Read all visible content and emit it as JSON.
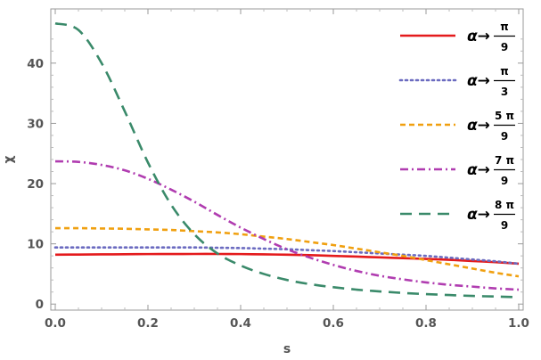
{
  "chart_data": {
    "type": "line",
    "title": "",
    "xlabel": "s",
    "ylabel": "χ",
    "xlim": [
      0,
      1.0
    ],
    "ylim": [
      -1,
      49
    ],
    "grid": false,
    "legend_position": "top-right",
    "x_ticks": [
      0.0,
      0.2,
      0.4,
      0.6,
      0.8,
      1.0
    ],
    "x_tick_labels": [
      "0.0",
      "0.2",
      "0.4",
      "0.6",
      "0.8",
      "1.0"
    ],
    "y_ticks": [
      0,
      10,
      20,
      30,
      40
    ],
    "y_tick_labels": [
      "0",
      "10",
      "20",
      "30",
      "40"
    ],
    "x": [
      0.0,
      0.05,
      0.1,
      0.15,
      0.2,
      0.25,
      0.3,
      0.35,
      0.4,
      0.45,
      0.5,
      0.55,
      0.6,
      0.65,
      0.7,
      0.75,
      0.8,
      0.85,
      0.9,
      0.95,
      1.0
    ],
    "series": [
      {
        "legend_prefix": "α→",
        "legend_numerator": "π",
        "legend_denominator": "9",
        "color": "#e41a1c",
        "dash": "solid",
        "values": [
          8.2,
          8.22,
          8.25,
          8.27,
          8.3,
          8.31,
          8.32,
          8.32,
          8.3,
          8.25,
          8.2,
          8.12,
          8.0,
          7.88,
          7.75,
          7.62,
          7.5,
          7.35,
          7.15,
          6.95,
          6.7
        ]
      },
      {
        "legend_prefix": "α→",
        "legend_numerator": "π",
        "legend_denominator": "3",
        "color": "#6b6bc0",
        "dash": "dotted",
        "values": [
          9.4,
          9.4,
          9.4,
          9.4,
          9.4,
          9.4,
          9.4,
          9.35,
          9.3,
          9.2,
          9.1,
          8.95,
          8.8,
          8.6,
          8.4,
          8.2,
          8.0,
          7.7,
          7.4,
          7.1,
          6.7
        ]
      },
      {
        "legend_prefix": "α→",
        "legend_numerator": "5 π",
        "legend_denominator": "9",
        "color": "#f0a010",
        "dash": "dashed",
        "values": [
          12.6,
          12.6,
          12.55,
          12.5,
          12.4,
          12.3,
          12.1,
          11.9,
          11.6,
          11.2,
          10.8,
          10.3,
          9.8,
          9.2,
          8.6,
          8.0,
          7.3,
          6.6,
          5.9,
          5.2,
          4.6
        ]
      },
      {
        "legend_prefix": "α→",
        "legend_numerator": "7 π",
        "legend_denominator": "9",
        "color": "#b03cb0",
        "dash": "dashdot",
        "values": [
          23.7,
          23.6,
          23.1,
          22.2,
          20.8,
          19.0,
          17.0,
          14.8,
          12.7,
          10.8,
          9.1,
          7.7,
          6.5,
          5.5,
          4.7,
          4.1,
          3.6,
          3.2,
          2.9,
          2.6,
          2.4
        ]
      },
      {
        "legend_prefix": "α→",
        "legend_numerator": "8 π",
        "legend_denominator": "9",
        "color": "#3a8a6a",
        "dash": "longdash",
        "values": [
          46.6,
          45.5,
          40.0,
          32.0,
          23.5,
          16.5,
          11.6,
          8.4,
          6.4,
          5.0,
          4.0,
          3.3,
          2.8,
          2.4,
          2.1,
          1.85,
          1.65,
          1.5,
          1.35,
          1.25,
          1.15
        ]
      }
    ]
  }
}
